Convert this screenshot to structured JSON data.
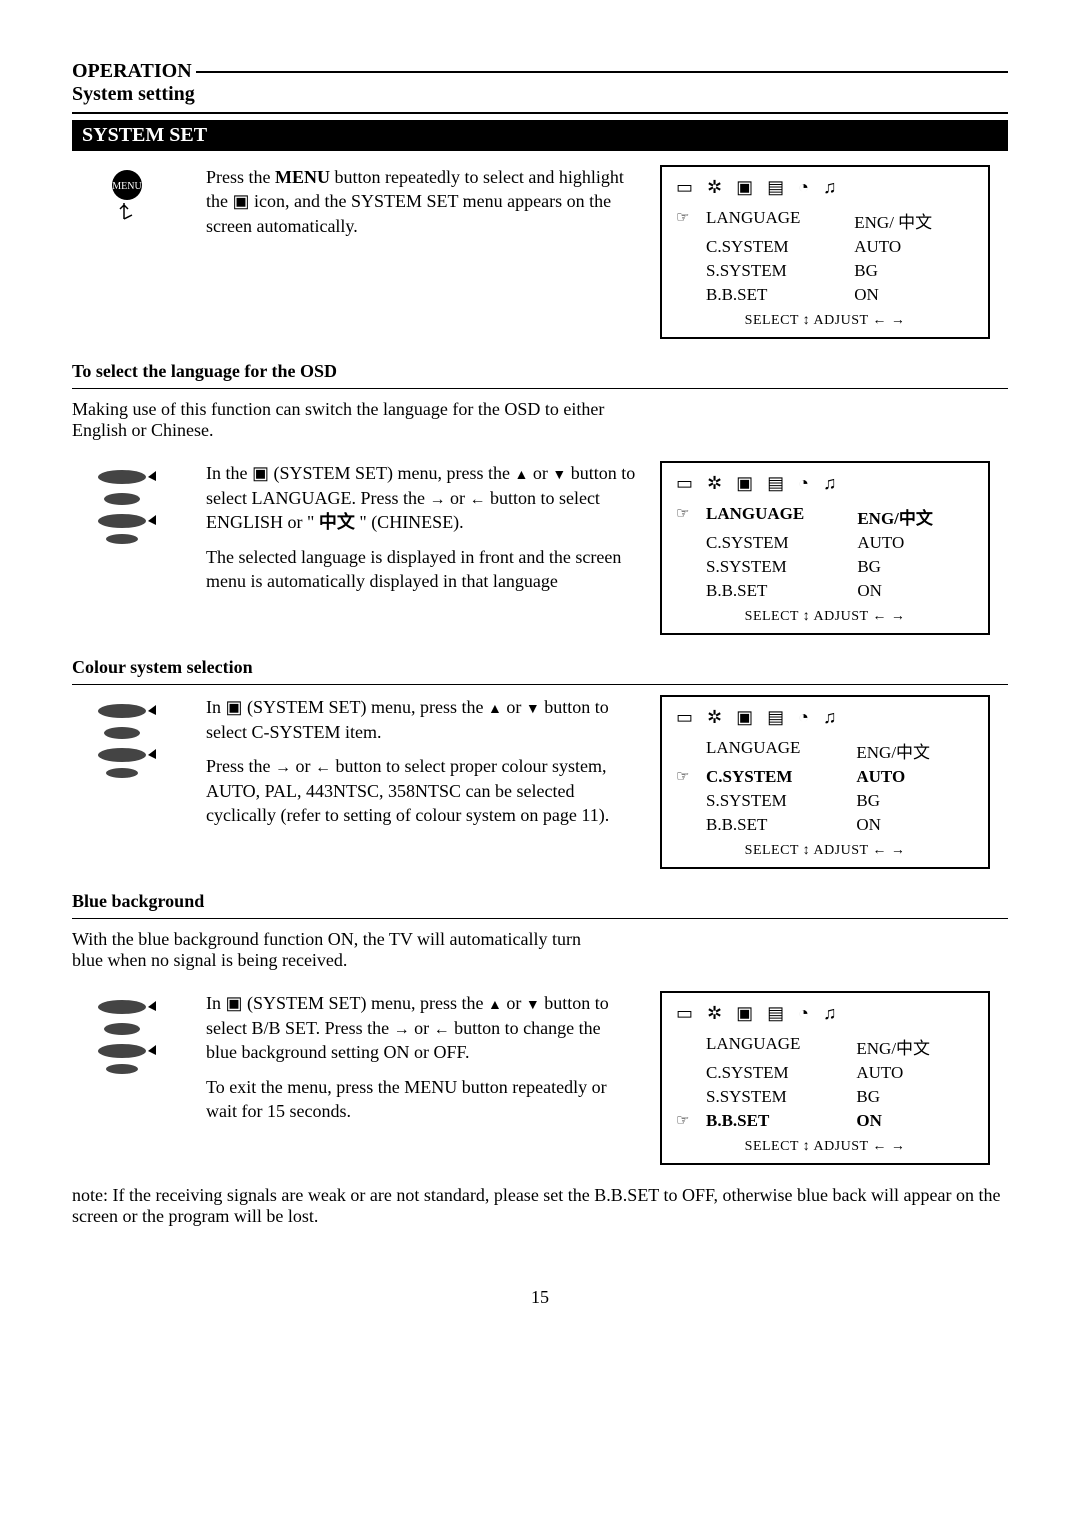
{
  "header": {
    "line1": "OPERATION",
    "line2": "System setting",
    "section_bar": "SYSTEM SET"
  },
  "intro": {
    "text_before_bold": "Press the ",
    "bold_word": "MENU",
    "text_after_bold": " button repeatedly to select and highlight the ",
    "text_after_icon": " icon, and the SYSTEM SET menu appears on the screen automatically."
  },
  "osd_common": {
    "foot": "SELECT ↕  ADJUST ← →",
    "labels": {
      "language": "LANGUAGE",
      "csystem": "C.SYSTEM",
      "ssystem": "S.SYSTEM",
      "bbset": "B.B.SET"
    },
    "icon_glyphs": [
      "▭",
      "✲",
      "▣",
      "▤",
      "◔",
      "♫"
    ]
  },
  "osd1": {
    "pointer_row": 0,
    "bold_row": -1,
    "values": {
      "language": "ENG/ 中文",
      "csystem": "AUTO",
      "ssystem": "BG",
      "bbset": "ON"
    }
  },
  "section_lang": {
    "heading": "To select the language for the OSD",
    "lead": "Making use of this function can switch the language for the OSD to either English or Chinese.",
    "p1_a": "In the ",
    "p1_b": " (SYSTEM SET) menu, press the ",
    "p1_c": " or ",
    "p1_d": " button to select LANGUAGE. Press the ",
    "p1_e": " or ",
    "p1_f": " button to select ENGLISH or \" ",
    "p1_g": "中文",
    "p1_h": " \" (CHINESE).",
    "p2": "The selected language is displayed in front and the screen menu is automatically displayed in that language"
  },
  "osd2": {
    "pointer_row": 0,
    "bold_row": 0,
    "values": {
      "language": "ENG/中文",
      "csystem": "AUTO",
      "ssystem": "BG",
      "bbset": "ON"
    }
  },
  "section_colour": {
    "heading": "Colour system selection",
    "p1_a": "In ",
    "p1_b": " (SYSTEM SET) menu, press the ",
    "p1_c": " or ",
    "p1_d": " button to select C-SYSTEM item.",
    "p2_a": "Press the ",
    "p2_b": " or ",
    "p2_c": " button to select proper colour system, AUTO, PAL, 443NTSC, 358NTSC can be selected cyclically (refer to setting of colour system on page 11)."
  },
  "osd3": {
    "pointer_row": 1,
    "bold_row": 1,
    "values": {
      "language": "ENG/中文",
      "csystem": "AUTO",
      "ssystem": "BG",
      "bbset": "ON"
    }
  },
  "section_blue": {
    "heading": "Blue background",
    "lead": "With the blue background function ON, the TV will automatically turn blue when no signal is being received.",
    "p1_a": "In ",
    "p1_b": " (SYSTEM SET) menu, press the ",
    "p1_c": " or ",
    "p1_d": " button to select B/B SET. Press the ",
    "p1_e": " or ",
    "p1_f": " button to change the blue background setting ON or OFF.",
    "p2": "To exit the menu, press the MENU button repeatedly or wait for 15 seconds."
  },
  "osd4": {
    "pointer_row": 3,
    "bold_row": 3,
    "values": {
      "language": "ENG/中文",
      "csystem": "AUTO",
      "ssystem": "BG",
      "bbset": "ON"
    }
  },
  "note": "note: If the receiving signals are weak or are not standard, please set the B.B.SET to OFF, otherwise blue back will appear on the screen or the program will be lost.",
  "page_number": "15"
}
